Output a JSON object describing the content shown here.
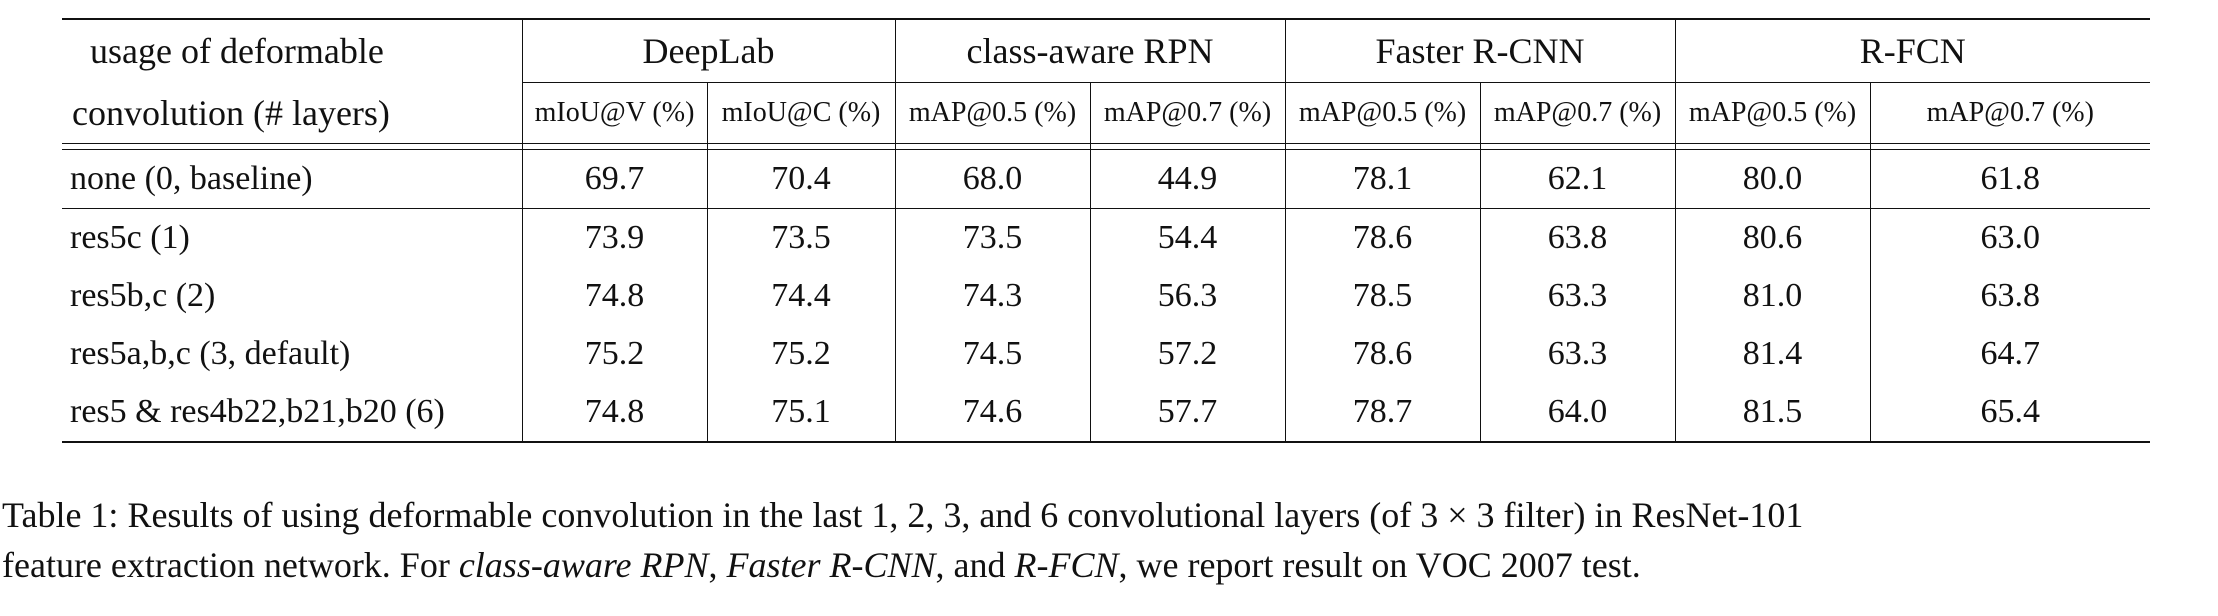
{
  "table": {
    "corner_label_line1": "usage of deformable",
    "corner_label_line2": "convolution (# layers)",
    "groups": [
      "DeepLab",
      "class-aware RPN",
      "Faster R-CNN",
      "R-FCN"
    ],
    "subcolumns": [
      "mIoU@V (%)",
      "mIoU@C (%)",
      "mAP@0.5 (%)",
      "mAP@0.7 (%)",
      "mAP@0.5 (%)",
      "mAP@0.7 (%)",
      "mAP@0.5 (%)",
      "mAP@0.7 (%)"
    ],
    "rows": [
      {
        "label": "none (0, baseline)",
        "values": [
          "69.7",
          "70.4",
          "68.0",
          "44.9",
          "78.1",
          "62.1",
          "80.0",
          "61.8"
        ]
      },
      {
        "label": "res5c (1)",
        "values": [
          "73.9",
          "73.5",
          "73.5",
          "54.4",
          "78.6",
          "63.8",
          "80.6",
          "63.0"
        ]
      },
      {
        "label": "res5b,c (2)",
        "values": [
          "74.8",
          "74.4",
          "74.3",
          "56.3",
          "78.5",
          "63.3",
          "81.0",
          "63.8"
        ]
      },
      {
        "label": "res5a,b,c (3, default)",
        "values": [
          "75.2",
          "75.2",
          "74.5",
          "57.2",
          "78.6",
          "63.3",
          "81.4",
          "64.7"
        ]
      },
      {
        "label": "res5 & res4b22,b21,b20 (6)",
        "values": [
          "74.8",
          "75.1",
          "74.6",
          "57.7",
          "78.7",
          "64.0",
          "81.5",
          "65.4"
        ]
      }
    ]
  },
  "caption": {
    "part1": "Table 1: Results of using deformable convolution in the last 1, 2, 3, and 6 convolutional layers (of 3 × 3 filter) in ResNet-101",
    "part2": "feature extraction network. For ",
    "em1": "class-aware RPN",
    "sep1": ", ",
    "em2": "Faster R-CNN",
    "sep2": ", and ",
    "em3": "R-FCN",
    "part3": ", we report result on VOC 2007 test."
  }
}
